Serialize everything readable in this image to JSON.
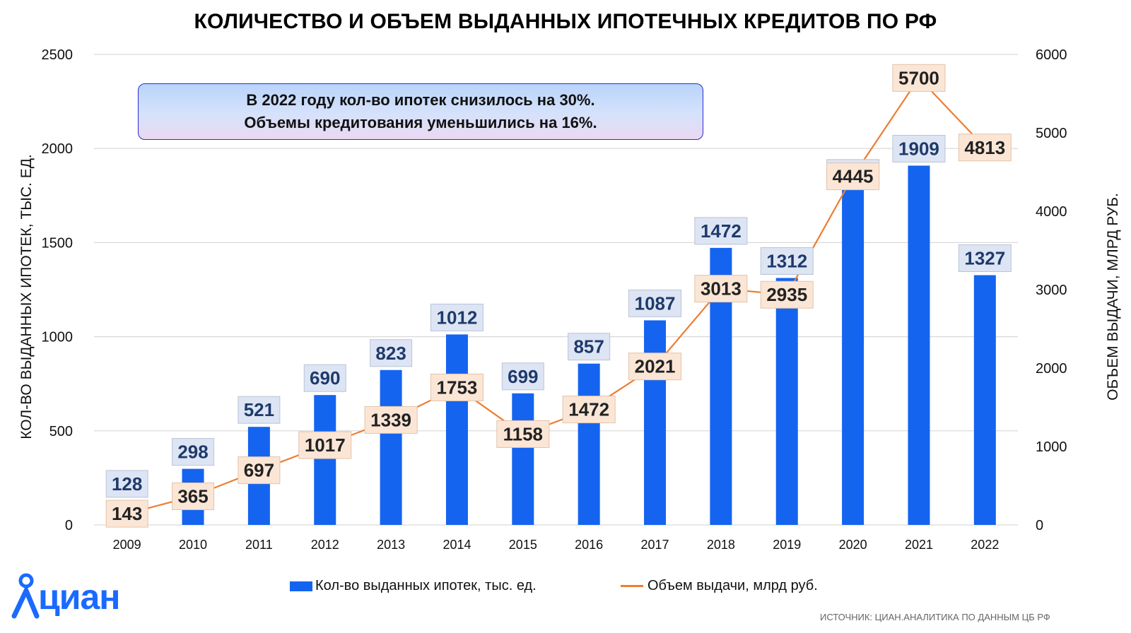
{
  "title": "КОЛИЧЕСТВО И ОБЪЕМ ВЫДАННЫХ ИПОТЕЧНЫХ КРЕДИТОВ ПО РФ",
  "note": {
    "line1": "В 2022 году кол-во ипотек снизилось на 30%.",
    "line2": "Объемы кредитования уменьшились на 16%."
  },
  "logo_text": "циан",
  "source": "ИСТОЧНИК: ЦИАН.АНАЛИТИКА ПО ДАННЫМ  ЦБ РФ",
  "colors": {
    "bar": "#1464f0",
    "line": "#ed7d31",
    "bar_label_bg": "#dde5f4",
    "line_label_bg": "#fbe6d6",
    "grid": "#d9d9d9",
    "bar_label_text": "#1f3a6b",
    "logo": "#1a6aff"
  },
  "chart_data": {
    "type": "bar",
    "categories": [
      "2009",
      "2010",
      "2011",
      "2012",
      "2013",
      "2014",
      "2015",
      "2016",
      "2017",
      "2018",
      "2019",
      "2020",
      "2021",
      "2022"
    ],
    "series": [
      {
        "name": "Кол-во выданных ипотек, тыс. ед.",
        "type": "bar",
        "axis": "left",
        "values": [
          128,
          298,
          521,
          690,
          823,
          1012,
          699,
          857,
          1087,
          1472,
          1312,
          1780,
          1909,
          1327
        ]
      },
      {
        "name": "Объем выдачи, млрд руб.",
        "type": "line",
        "axis": "right",
        "values": [
          143,
          365,
          697,
          1017,
          1339,
          1753,
          1158,
          1472,
          2021,
          3013,
          2935,
          4445,
          5700,
          4813
        ]
      }
    ],
    "ylabel_left": "КОЛ-ВО ВЫДАННЫХ ИПОТЕК, ТЫС. ЕД.",
    "ylabel_right": "ОБЪЕМ ВЫДАЧИ, МЛРД РУБ.",
    "ylim_left": [
      0,
      2500
    ],
    "yticks_left": [
      0,
      500,
      1000,
      1500,
      2000,
      2500
    ],
    "ylim_right": [
      0,
      6000
    ],
    "yticks_right": [
      0,
      1000,
      2000,
      3000,
      4000,
      5000,
      6000
    ],
    "grid": true,
    "legend_position": "bottom"
  }
}
